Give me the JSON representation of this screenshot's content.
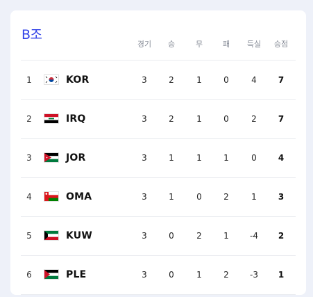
{
  "group": {
    "title": "B조"
  },
  "columns": {
    "played": "경기",
    "won": "승",
    "draw": "무",
    "lost": "패",
    "gd": "득실",
    "points": "승점"
  },
  "rows": [
    {
      "rank": "1",
      "team": "KOR",
      "flag": "korea-flag-icon",
      "played": "3",
      "won": "2",
      "draw": "1",
      "lost": "0",
      "gd": "4",
      "points": "7"
    },
    {
      "rank": "2",
      "team": "IRQ",
      "flag": "iraq-flag-icon",
      "played": "3",
      "won": "2",
      "draw": "1",
      "lost": "0",
      "gd": "2",
      "points": "7"
    },
    {
      "rank": "3",
      "team": "JOR",
      "flag": "jordan-flag-icon",
      "played": "3",
      "won": "1",
      "draw": "1",
      "lost": "1",
      "gd": "0",
      "points": "4"
    },
    {
      "rank": "4",
      "team": "OMA",
      "flag": "oman-flag-icon",
      "played": "3",
      "won": "1",
      "draw": "0",
      "lost": "2",
      "gd": "1",
      "points": "3"
    },
    {
      "rank": "5",
      "team": "KUW",
      "flag": "kuwait-flag-icon",
      "played": "3",
      "won": "0",
      "draw": "2",
      "lost": "1",
      "gd": "-4",
      "points": "2"
    },
    {
      "rank": "6",
      "team": "PLE",
      "flag": "palestine-flag-icon",
      "played": "3",
      "won": "0",
      "draw": "1",
      "lost": "2",
      "gd": "-3",
      "points": "1"
    }
  ]
}
